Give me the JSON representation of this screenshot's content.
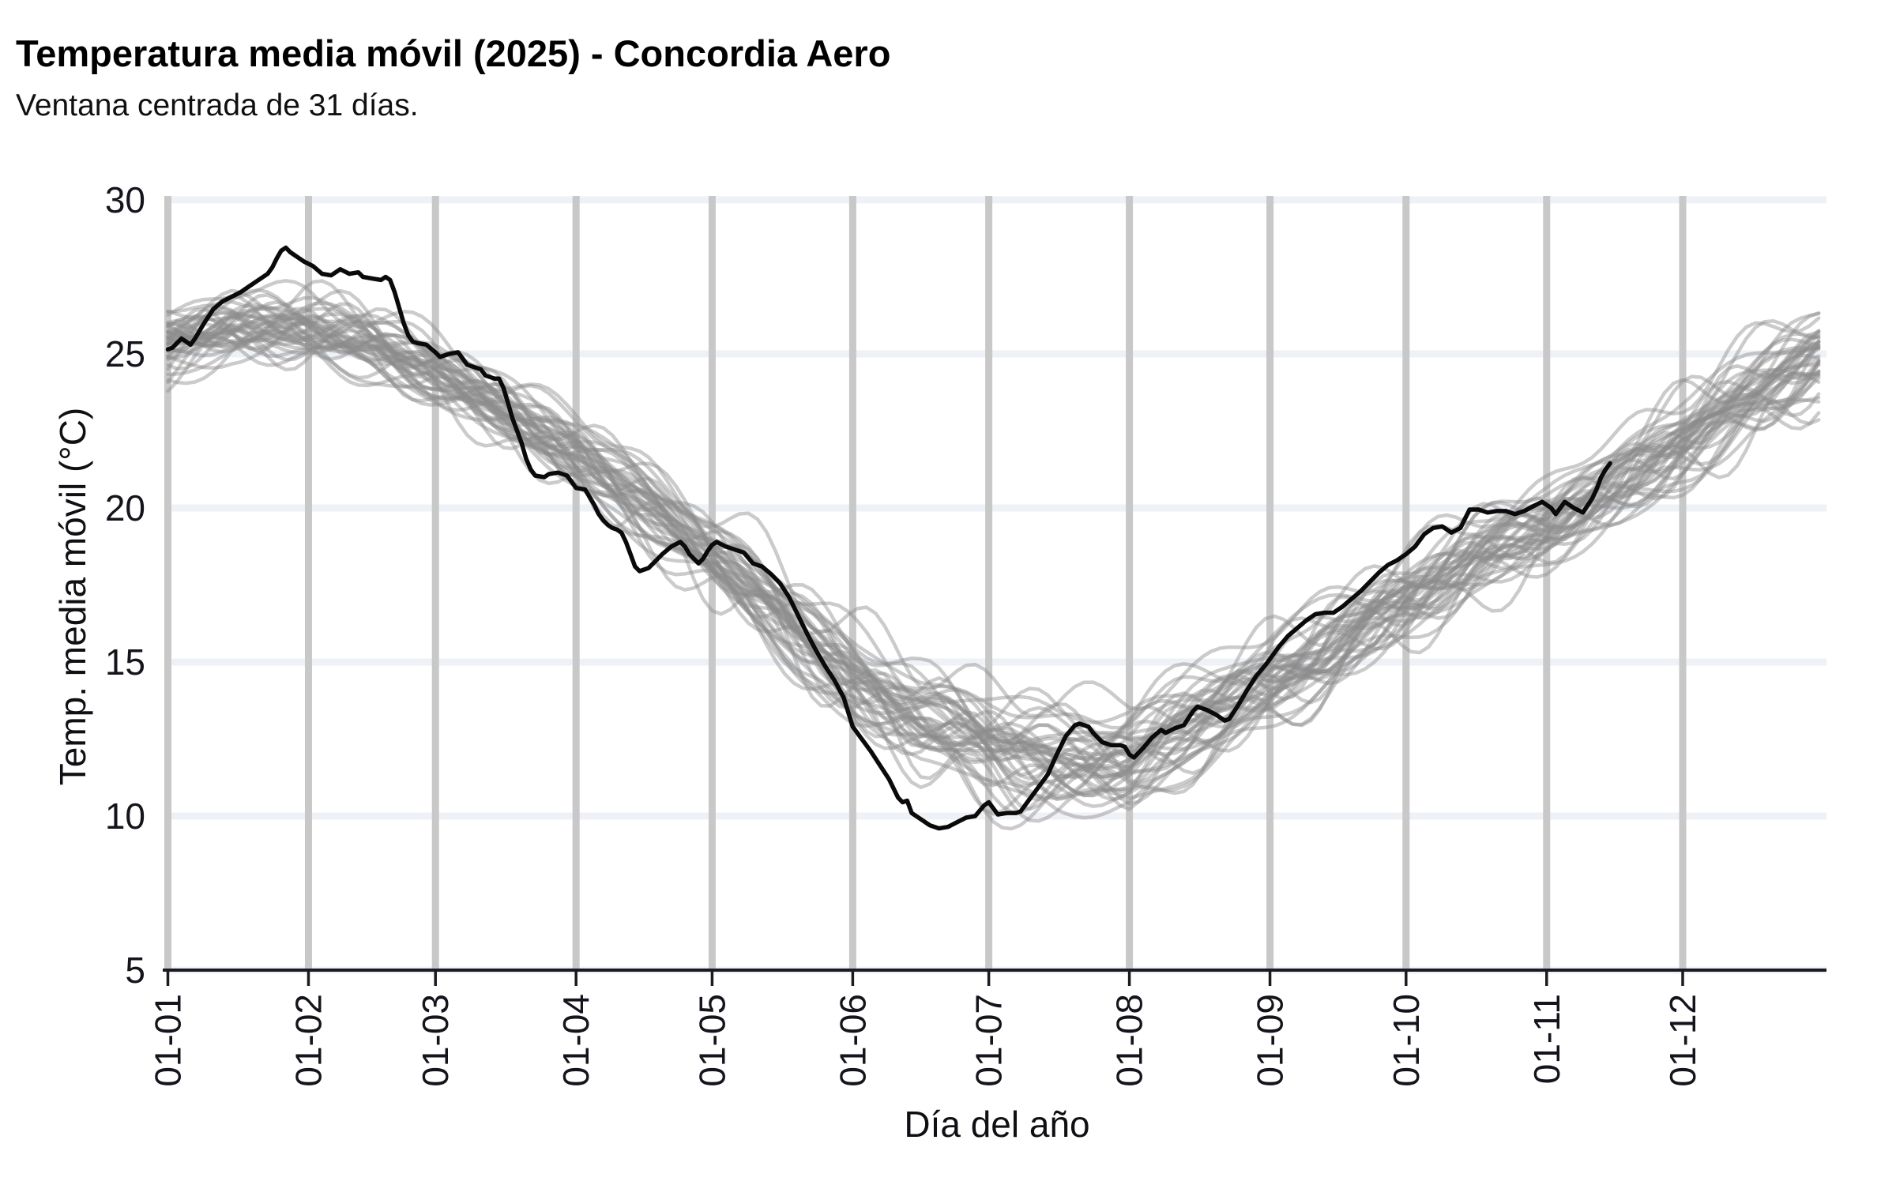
{
  "page": {
    "title": "Temperatura media móvil (2025) - Concordia Aero",
    "subtitle": "Ventana centrada de 31 días."
  },
  "chart_data": {
    "type": "line",
    "title": "Temperatura media móvil (2025) - Concordia Aero",
    "subtitle": "Ventana centrada de 31 días.",
    "xlabel": "Día del año",
    "ylabel": "Temp. media móvil (°C)",
    "legend": "none",
    "grid": {
      "horizontal": "every 5 °C, light",
      "vertical": "every month start, gray"
    },
    "x_axis": {
      "domain_days": [
        1,
        365
      ],
      "tick_days": [
        1,
        32,
        60,
        91,
        121,
        152,
        182,
        213,
        244,
        274,
        305,
        335
      ],
      "tick_labels": [
        "01-01",
        "01-02",
        "01-03",
        "01-04",
        "01-05",
        "01-06",
        "01-07",
        "01-08",
        "01-09",
        "01-10",
        "01-11",
        "01-12"
      ],
      "tick_label_rotation_deg": -90
    },
    "y_axis": {
      "range": [
        5,
        30
      ],
      "ticks": [
        5,
        10,
        15,
        20,
        25,
        30
      ]
    },
    "colors": {
      "series_2025": "#0a0a0a",
      "historical": "rgba(140,140,140,0.45)",
      "grid_vertical": "#c8c8c8",
      "grid_horizontal": "#eef1f6",
      "axis": "#1a1a22",
      "text": "#14141c"
    },
    "series": [
      {
        "name": "2025",
        "role": "highlight",
        "ends_at_day": 319,
        "points": [
          [
            1,
            25.15
          ],
          [
            2,
            25.2
          ],
          [
            3,
            25.35
          ],
          [
            4,
            25.5
          ],
          [
            5,
            25.4
          ],
          [
            6,
            25.3
          ],
          [
            7,
            25.5
          ],
          [
            9,
            26.0
          ],
          [
            11,
            26.45
          ],
          [
            13,
            26.7
          ],
          [
            15,
            26.85
          ],
          [
            17,
            27.0
          ],
          [
            19,
            27.2
          ],
          [
            21,
            27.4
          ],
          [
            23,
            27.6
          ],
          [
            24,
            27.8
          ],
          [
            25,
            28.1
          ],
          [
            26,
            28.35
          ],
          [
            27,
            28.45
          ],
          [
            28,
            28.3
          ],
          [
            29,
            28.2
          ],
          [
            30,
            28.1
          ],
          [
            31,
            28.0
          ],
          [
            33,
            27.85
          ],
          [
            35,
            27.6
          ],
          [
            37,
            27.55
          ],
          [
            39,
            27.75
          ],
          [
            41,
            27.6
          ],
          [
            43,
            27.65
          ],
          [
            44,
            27.5
          ],
          [
            46,
            27.45
          ],
          [
            48,
            27.4
          ],
          [
            49,
            27.5
          ],
          [
            50,
            27.4
          ],
          [
            51,
            27.0
          ],
          [
            52,
            26.5
          ],
          [
            53,
            26.0
          ],
          [
            54,
            25.6
          ],
          [
            55,
            25.4
          ],
          [
            56,
            25.35
          ],
          [
            58,
            25.3
          ],
          [
            60,
            25.05
          ],
          [
            61,
            24.9
          ],
          [
            63,
            25.0
          ],
          [
            65,
            25.05
          ],
          [
            67,
            24.65
          ],
          [
            68,
            24.6
          ],
          [
            70,
            24.5
          ],
          [
            71,
            24.3
          ],
          [
            73,
            24.2
          ],
          [
            74,
            24.2
          ],
          [
            75,
            23.9
          ],
          [
            76,
            23.4
          ],
          [
            77,
            22.9
          ],
          [
            78,
            22.5
          ],
          [
            79,
            22.1
          ],
          [
            80,
            21.6
          ],
          [
            81,
            21.25
          ],
          [
            82,
            21.05
          ],
          [
            84,
            21.0
          ],
          [
            85,
            21.1
          ],
          [
            87,
            21.15
          ],
          [
            89,
            21.05
          ],
          [
            90,
            20.85
          ],
          [
            91,
            20.65
          ],
          [
            93,
            20.6
          ],
          [
            95,
            20.1
          ],
          [
            96,
            19.8
          ],
          [
            97,
            19.6
          ],
          [
            98,
            19.45
          ],
          [
            99,
            19.35
          ],
          [
            100,
            19.3
          ],
          [
            101,
            19.2
          ],
          [
            102,
            18.9
          ],
          [
            103,
            18.5
          ],
          [
            104,
            18.1
          ],
          [
            105,
            17.95
          ],
          [
            106,
            18.0
          ],
          [
            107,
            18.05
          ],
          [
            108,
            18.2
          ],
          [
            110,
            18.5
          ],
          [
            112,
            18.75
          ],
          [
            114,
            18.9
          ],
          [
            115,
            18.75
          ],
          [
            116,
            18.5
          ],
          [
            118,
            18.2
          ],
          [
            119,
            18.35
          ],
          [
            120,
            18.6
          ],
          [
            121,
            18.8
          ],
          [
            122,
            18.9
          ],
          [
            124,
            18.75
          ],
          [
            126,
            18.65
          ],
          [
            128,
            18.55
          ],
          [
            130,
            18.2
          ],
          [
            132,
            18.1
          ],
          [
            134,
            17.85
          ],
          [
            136,
            17.55
          ],
          [
            138,
            17.1
          ],
          [
            140,
            16.5
          ],
          [
            142,
            15.9
          ],
          [
            144,
            15.35
          ],
          [
            146,
            14.85
          ],
          [
            148,
            14.4
          ],
          [
            150,
            13.85
          ],
          [
            152,
            12.9
          ],
          [
            154,
            12.5
          ],
          [
            156,
            12.1
          ],
          [
            158,
            11.65
          ],
          [
            160,
            11.2
          ],
          [
            162,
            10.6
          ],
          [
            163,
            10.45
          ],
          [
            164,
            10.5
          ],
          [
            165,
            10.1
          ],
          [
            167,
            9.9
          ],
          [
            169,
            9.7
          ],
          [
            171,
            9.6
          ],
          [
            173,
            9.65
          ],
          [
            175,
            9.8
          ],
          [
            177,
            9.95
          ],
          [
            179,
            10.0
          ],
          [
            181,
            10.35
          ],
          [
            182,
            10.45
          ],
          [
            184,
            10.05
          ],
          [
            186,
            10.1
          ],
          [
            188,
            10.1
          ],
          [
            189,
            10.15
          ],
          [
            191,
            10.55
          ],
          [
            193,
            10.95
          ],
          [
            195,
            11.35
          ],
          [
            197,
            12.0
          ],
          [
            199,
            12.6
          ],
          [
            201,
            12.95
          ],
          [
            202,
            13.0
          ],
          [
            204,
            12.9
          ],
          [
            205,
            12.7
          ],
          [
            207,
            12.4
          ],
          [
            209,
            12.3
          ],
          [
            211,
            12.3
          ],
          [
            212,
            12.25
          ],
          [
            213,
            12.0
          ],
          [
            214,
            11.9
          ],
          [
            216,
            12.2
          ],
          [
            218,
            12.55
          ],
          [
            220,
            12.8
          ],
          [
            221,
            12.7
          ],
          [
            223,
            12.85
          ],
          [
            225,
            12.95
          ],
          [
            227,
            13.4
          ],
          [
            228,
            13.55
          ],
          [
            230,
            13.45
          ],
          [
            232,
            13.3
          ],
          [
            234,
            13.1
          ],
          [
            235,
            13.15
          ],
          [
            237,
            13.6
          ],
          [
            239,
            14.1
          ],
          [
            241,
            14.55
          ],
          [
            243,
            14.9
          ],
          [
            244,
            15.1
          ],
          [
            246,
            15.5
          ],
          [
            248,
            15.85
          ],
          [
            250,
            16.1
          ],
          [
            252,
            16.35
          ],
          [
            254,
            16.55
          ],
          [
            256,
            16.6
          ],
          [
            258,
            16.6
          ],
          [
            260,
            16.8
          ],
          [
            262,
            17.05
          ],
          [
            264,
            17.3
          ],
          [
            266,
            17.6
          ],
          [
            268,
            17.9
          ],
          [
            270,
            18.15
          ],
          [
            272,
            18.3
          ],
          [
            274,
            18.5
          ],
          [
            276,
            18.75
          ],
          [
            278,
            19.15
          ],
          [
            280,
            19.35
          ],
          [
            282,
            19.4
          ],
          [
            284,
            19.2
          ],
          [
            286,
            19.35
          ],
          [
            288,
            19.95
          ],
          [
            290,
            19.95
          ],
          [
            292,
            19.85
          ],
          [
            294,
            19.9
          ],
          [
            296,
            19.9
          ],
          [
            298,
            19.8
          ],
          [
            300,
            19.9
          ],
          [
            302,
            20.05
          ],
          [
            304,
            20.2
          ],
          [
            306,
            20.0
          ],
          [
            307,
            19.8
          ],
          [
            309,
            20.2
          ],
          [
            311,
            20.0
          ],
          [
            313,
            19.85
          ],
          [
            315,
            20.3
          ],
          [
            316,
            20.6
          ],
          [
            317,
            21.0
          ],
          [
            318,
            21.25
          ],
          [
            319,
            21.45
          ]
        ]
      }
    ],
    "historical_ensemble": {
      "n_series": 42,
      "style": "thin light-gray spaghetti lines, full year",
      "band_day_mean_halfwidth": [
        [
          1,
          25.5,
          2.3
        ],
        [
          15,
          26.0,
          2.1
        ],
        [
          32,
          26.0,
          2.1
        ],
        [
          46,
          25.4,
          2.05
        ],
        [
          60,
          24.5,
          2.0
        ],
        [
          75,
          23.3,
          2.1
        ],
        [
          91,
          21.9,
          2.4
        ],
        [
          106,
          20.3,
          2.6
        ],
        [
          121,
          18.6,
          2.8
        ],
        [
          136,
          16.7,
          3.0
        ],
        [
          152,
          14.7,
          3.2
        ],
        [
          167,
          13.3,
          3.5
        ],
        [
          182,
          12.5,
          3.8
        ],
        [
          197,
          12.0,
          3.8
        ],
        [
          213,
          12.1,
          3.8
        ],
        [
          228,
          13.2,
          3.5
        ],
        [
          244,
          14.5,
          3.3
        ],
        [
          259,
          15.9,
          3.0
        ],
        [
          274,
          17.2,
          2.9
        ],
        [
          289,
          18.5,
          2.7
        ],
        [
          305,
          19.6,
          2.7
        ],
        [
          320,
          20.9,
          2.9
        ],
        [
          335,
          22.4,
          3.1
        ],
        [
          350,
          23.8,
          3.2
        ],
        [
          365,
          25.1,
          3.2
        ]
      ]
    }
  }
}
